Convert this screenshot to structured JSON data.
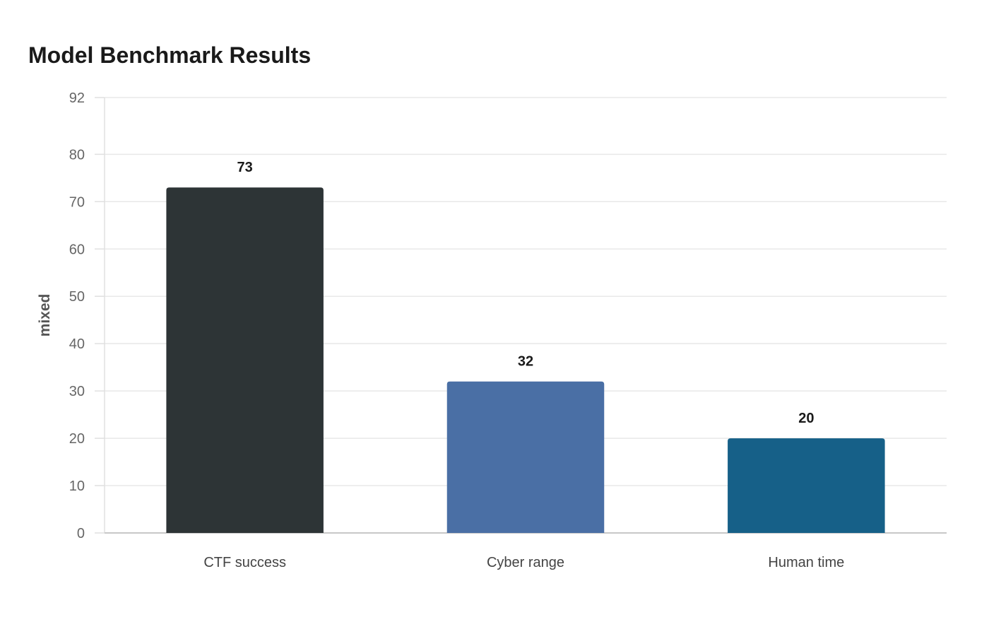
{
  "chart_data": {
    "type": "bar",
    "title": "Model Benchmark Results",
    "xlabel": "",
    "ylabel": "mixed",
    "categories": [
      "CTF success",
      "Cyber range",
      "Human time"
    ],
    "values": [
      73,
      32,
      20
    ],
    "colors": [
      "#2d3436",
      "#4a6fa5",
      "#166088"
    ],
    "ylim": [
      0,
      92
    ],
    "yticks": [
      0,
      10,
      20,
      30,
      40,
      50,
      60,
      70,
      80,
      92
    ],
    "grid": true,
    "legend": "none"
  }
}
